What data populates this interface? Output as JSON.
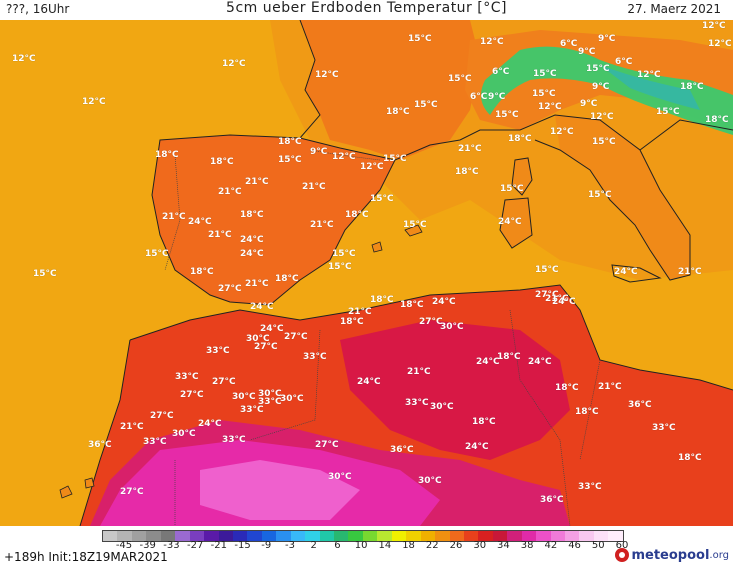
{
  "header": {
    "left": "???, 16Uhr",
    "title": "5cm ueber Erdboden Temperatur [°C]",
    "date": "27. Maerz 2021"
  },
  "colors": {
    "sea_yellow": "#f1a712",
    "sea_orange": "#f09015",
    "land_orange": "#f06a1c",
    "land_red": "#e8361c",
    "hot_red": "#d81845",
    "magenta": "#e62aa8",
    "pink": "#f06ad4",
    "alpine_green": "#3cc86e",
    "alpine_teal": "#36b8a0",
    "coast_line": "#222222"
  },
  "labels": [
    {
      "t": "12°C"
    },
    {
      "t": "12°C"
    },
    {
      "t": "12°C"
    },
    {
      "t": "12°C"
    },
    {
      "t": "15°C"
    },
    {
      "t": "12°C"
    },
    {
      "t": "12°C"
    },
    {
      "t": "9°C"
    },
    {
      "t": "6°C"
    },
    {
      "t": "9°C"
    },
    {
      "t": "6°C"
    },
    {
      "t": "12°C"
    },
    {
      "t": "15°C"
    },
    {
      "t": "6°C"
    },
    {
      "t": "15°C"
    },
    {
      "t": "18°C"
    },
    {
      "t": "15°C"
    },
    {
      "t": "9°C"
    },
    {
      "t": "12°C"
    },
    {
      "t": "15°C"
    },
    {
      "t": "6°C"
    },
    {
      "t": "9°C"
    },
    {
      "t": "12°C"
    },
    {
      "t": "18°C"
    },
    {
      "t": "15°C"
    },
    {
      "t": "9°C"
    },
    {
      "t": "12°C"
    },
    {
      "t": "15°C"
    },
    {
      "t": "15°C"
    },
    {
      "t": "18°C"
    },
    {
      "t": "12°C"
    },
    {
      "t": "15°C"
    },
    {
      "t": "18°C"
    },
    {
      "t": "18°C"
    },
    {
      "t": "21°C"
    },
    {
      "t": "18°C"
    },
    {
      "t": "18°C"
    },
    {
      "t": "9°C"
    },
    {
      "t": "15°C"
    },
    {
      "t": "12°C"
    },
    {
      "t": "15°C"
    },
    {
      "t": "12°C"
    },
    {
      "t": "18°C"
    },
    {
      "t": "21°C"
    },
    {
      "t": "21°C"
    },
    {
      "t": "21°C"
    },
    {
      "t": "15°C"
    },
    {
      "t": "15°C"
    },
    {
      "t": "15°C"
    },
    {
      "t": "21°C"
    },
    {
      "t": "24°C"
    },
    {
      "t": "18°C"
    },
    {
      "t": "21°C"
    },
    {
      "t": "18°C"
    },
    {
      "t": "15°C"
    },
    {
      "t": "24°C"
    },
    {
      "t": "24°C"
    },
    {
      "t": "21°C"
    },
    {
      "t": "15°C"
    },
    {
      "t": "24°C"
    },
    {
      "t": "15°C"
    },
    {
      "t": "15°C"
    },
    {
      "t": "15°C"
    },
    {
      "t": "24°C"
    },
    {
      "t": "21°C"
    },
    {
      "t": "15°C"
    },
    {
      "t": "18°C"
    },
    {
      "t": "21°C"
    },
    {
      "t": "18°C"
    },
    {
      "t": "27°C"
    },
    {
      "t": "24°C"
    },
    {
      "t": "21°C"
    },
    {
      "t": "18°C"
    },
    {
      "t": "18°C"
    },
    {
      "t": "24°C"
    },
    {
      "t": "27°C"
    },
    {
      "t": "24°C"
    },
    {
      "t": "21°C"
    },
    {
      "t": "18°C"
    },
    {
      "t": "27°C"
    },
    {
      "t": "30°C"
    },
    {
      "t": "27°C"
    },
    {
      "t": "24°C"
    },
    {
      "t": "27°C"
    },
    {
      "t": "33°C"
    },
    {
      "t": "30°C"
    },
    {
      "t": "33°C"
    },
    {
      "t": "18°C"
    },
    {
      "t": "24°C"
    },
    {
      "t": "24°C"
    },
    {
      "t": "33°C"
    },
    {
      "t": "27°C"
    },
    {
      "t": "21°C"
    },
    {
      "t": "30°C"
    },
    {
      "t": "24°C"
    },
    {
      "t": "27°C"
    },
    {
      "t": "30°C"
    },
    {
      "t": "33°C"
    },
    {
      "t": "18°C"
    },
    {
      "t": "21°C"
    },
    {
      "t": "30°C"
    },
    {
      "t": "33°C"
    },
    {
      "t": "30°C"
    },
    {
      "t": "18°C"
    },
    {
      "t": "27°C"
    },
    {
      "t": "21°C"
    },
    {
      "t": "36°C"
    },
    {
      "t": "33°C"
    },
    {
      "t": "24°C"
    },
    {
      "t": "18°C"
    },
    {
      "t": "33°C"
    },
    {
      "t": "30°C"
    },
    {
      "t": "33°C"
    },
    {
      "t": "33°C"
    },
    {
      "t": "27°C"
    },
    {
      "t": "36°C"
    },
    {
      "t": "24°C"
    },
    {
      "t": "36°C"
    },
    {
      "t": "18°C"
    },
    {
      "t": "30°C"
    },
    {
      "t": "30°C"
    },
    {
      "t": "27°C"
    },
    {
      "t": "36°C"
    },
    {
      "t": "33°C"
    }
  ],
  "scale": {
    "colors": [
      "#c8c8c8",
      "#b4b4b4",
      "#a0a0a0",
      "#8c8c8c",
      "#787878",
      "#9a6ad0",
      "#7a3ec0",
      "#5a1aa8",
      "#3c1a9a",
      "#2a2ab8",
      "#2046d0",
      "#1866e0",
      "#2a90f0",
      "#38b8f8",
      "#30d0e8",
      "#20c8a8",
      "#28b870",
      "#38c840",
      "#78d830",
      "#b8e830",
      "#f0f000",
      "#f0d000",
      "#f0b000",
      "#f09010",
      "#f06a1c",
      "#e8401c",
      "#d82020",
      "#c81838",
      "#d0207a",
      "#e02aa8",
      "#ec50c8",
      "#f07ad8",
      "#f4a0e4",
      "#f8c8f0",
      "#fce0f8",
      "#ffeefc"
    ],
    "ticks": [
      "-45",
      "-39",
      "-33",
      "-27",
      "-21",
      "-15",
      "-9",
      "-3",
      "2",
      "6",
      "10",
      "14",
      "18",
      "22",
      "26",
      "30",
      "34",
      "38",
      "42",
      "46",
      "50",
      "60"
    ]
  },
  "footer": {
    "run_info": "+189h Init:18Z19MAR2021",
    "logo_text": "meteopool",
    "logo_tld": ".org"
  }
}
